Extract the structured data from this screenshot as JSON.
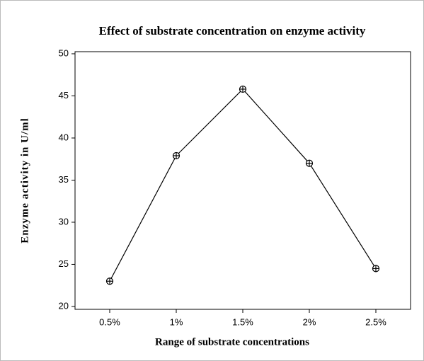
{
  "chart_data": {
    "type": "line",
    "title": "Effect of substrate concentration on enzyme activity",
    "x_label": "Range of substrate concentrations",
    "y_label": "Enzyme activity in U/ml",
    "categories": [
      "0.5%",
      "1%",
      "1.5%",
      "2%",
      "2.5%"
    ],
    "series": [
      {
        "name": "Enzyme activity",
        "color": "#000000",
        "values": [
          23,
          37.9,
          45.8,
          37,
          24.5
        ]
      }
    ],
    "ylim": [
      19.66,
      50.25
    ],
    "yticks": [
      20,
      25,
      30,
      35,
      40,
      45,
      50
    ]
  }
}
